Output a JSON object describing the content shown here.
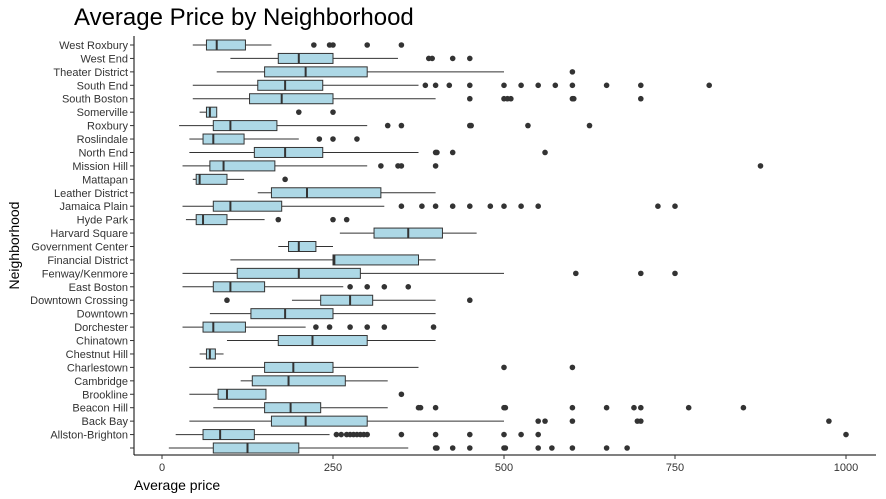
{
  "chart_data": {
    "type": "boxplot",
    "orientation": "horizontal",
    "title": "Average Price by Neighborhood",
    "xlabel": "Average price",
    "ylabel": "Neighborhood",
    "xlim": [
      -80,
      1045
    ],
    "xticks": [
      0,
      250,
      500,
      750,
      1000
    ],
    "box_color": "#ADD8E6",
    "grid": false,
    "categories": [
      {
        "name": "West Roxbury",
        "whisker_low": 45,
        "q1": 65,
        "median": 80,
        "q3": 122,
        "whisker_high": 160,
        "outliers": [
          222,
          245,
          250,
          300,
          350
        ]
      },
      {
        "name": "West End",
        "whisker_low": 100,
        "q1": 170,
        "median": 200,
        "q3": 250,
        "whisker_high": 345,
        "outliers": [
          390,
          395,
          425,
          450
        ]
      },
      {
        "name": "Theater District",
        "whisker_low": 80,
        "q1": 150,
        "median": 210,
        "q3": 300,
        "whisker_high": 500,
        "outliers": [
          600
        ]
      },
      {
        "name": "South End",
        "whisker_low": 45,
        "q1": 140,
        "median": 180,
        "q3": 235,
        "whisker_high": 375,
        "outliers": [
          385,
          400,
          420,
          450,
          500,
          525,
          550,
          575,
          600,
          650,
          700,
          800
        ]
      },
      {
        "name": "South Boston",
        "whisker_low": 45,
        "q1": 128,
        "median": 175,
        "q3": 250,
        "whisker_high": 400,
        "outliers": [
          450,
          500,
          505,
          510,
          600,
          602,
          700
        ]
      },
      {
        "name": "Somerville",
        "whisker_low": 55,
        "q1": 65,
        "median": 70,
        "q3": 80,
        "whisker_high": 80,
        "outliers": [
          200,
          250
        ]
      },
      {
        "name": "Roxbury",
        "whisker_low": 25,
        "q1": 75,
        "median": 100,
        "q3": 168,
        "whisker_high": 300,
        "outliers": [
          330,
          350,
          450,
          452,
          535,
          625
        ]
      },
      {
        "name": "Roslindale",
        "whisker_low": 40,
        "q1": 60,
        "median": 75,
        "q3": 120,
        "whisker_high": 200,
        "outliers": [
          230,
          250,
          285
        ]
      },
      {
        "name": "North End",
        "whisker_low": 40,
        "q1": 135,
        "median": 180,
        "q3": 235,
        "whisker_high": 375,
        "outliers": [
          400,
          402,
          425,
          560
        ]
      },
      {
        "name": "Mission Hill",
        "whisker_low": 30,
        "q1": 70,
        "median": 90,
        "q3": 165,
        "whisker_high": 300,
        "outliers": [
          320,
          345,
          350,
          400,
          875
        ]
      },
      {
        "name": "Mattapan",
        "whisker_low": 45,
        "q1": 50,
        "median": 55,
        "q3": 95,
        "whisker_high": 120,
        "outliers": [
          180
        ]
      },
      {
        "name": "Leather District",
        "whisker_low": 140,
        "q1": 160,
        "median": 212,
        "q3": 320,
        "whisker_high": 400,
        "outliers": []
      },
      {
        "name": "Jamaica Plain",
        "whisker_low": 30,
        "q1": 75,
        "median": 100,
        "q3": 175,
        "whisker_high": 325,
        "outliers": [
          350,
          380,
          400,
          425,
          450,
          480,
          500,
          525,
          550,
          725,
          750
        ]
      },
      {
        "name": "Hyde Park",
        "whisker_low": 35,
        "q1": 50,
        "median": 60,
        "q3": 95,
        "whisker_high": 150,
        "outliers": [
          170,
          250,
          270
        ]
      },
      {
        "name": "Harvard Square",
        "whisker_low": 260,
        "q1": 310,
        "median": 360,
        "q3": 410,
        "whisker_high": 460,
        "outliers": []
      },
      {
        "name": "Government Center",
        "whisker_low": 170,
        "q1": 185,
        "median": 200,
        "q3": 225,
        "whisker_high": 250,
        "outliers": []
      },
      {
        "name": "Financial District",
        "whisker_low": 100,
        "q1": 250,
        "median": 252,
        "q3": 375,
        "whisker_high": 400,
        "outliers": []
      },
      {
        "name": "Fenway/Kenmore",
        "whisker_low": 30,
        "q1": 110,
        "median": 200,
        "q3": 290,
        "whisker_high": 500,
        "outliers": [
          605,
          700,
          750
        ]
      },
      {
        "name": "East Boston",
        "whisker_low": 30,
        "q1": 75,
        "median": 100,
        "q3": 150,
        "whisker_high": 265,
        "outliers": [
          275,
          300,
          325,
          360
        ]
      },
      {
        "name": "Downtown Crossing",
        "whisker_low": 190,
        "q1": 232,
        "median": 275,
        "q3": 308,
        "whisker_high": 400,
        "outliers": [
          95,
          450
        ]
      },
      {
        "name": "Downtown",
        "whisker_low": 70,
        "q1": 130,
        "median": 180,
        "q3": 250,
        "whisker_high": 400,
        "outliers": []
      },
      {
        "name": "Dorchester",
        "whisker_low": 30,
        "q1": 60,
        "median": 75,
        "q3": 122,
        "whisker_high": 210,
        "outliers": [
          225,
          245,
          275,
          300,
          325,
          397
        ]
      },
      {
        "name": "Chinatown",
        "whisker_low": 95,
        "q1": 170,
        "median": 220,
        "q3": 300,
        "whisker_high": 400,
        "outliers": []
      },
      {
        "name": "Chestnut Hill",
        "whisker_low": 55,
        "q1": 65,
        "median": 70,
        "q3": 78,
        "whisker_high": 90,
        "outliers": []
      },
      {
        "name": "Charlestown",
        "whisker_low": 40,
        "q1": 150,
        "median": 192,
        "q3": 250,
        "whisker_high": 375,
        "outliers": [
          500,
          600
        ]
      },
      {
        "name": "Cambridge",
        "whisker_low": 115,
        "q1": 132,
        "median": 185,
        "q3": 268,
        "whisker_high": 330,
        "outliers": []
      },
      {
        "name": "Brookline",
        "whisker_low": 40,
        "q1": 82,
        "median": 95,
        "q3": 152,
        "whisker_high": 152,
        "outliers": [
          350
        ]
      },
      {
        "name": "Beacon Hill",
        "whisker_low": 75,
        "q1": 150,
        "median": 188,
        "q3": 232,
        "whisker_high": 330,
        "outliers": [
          375,
          378,
          400,
          500,
          502,
          600,
          650,
          690,
          700,
          770,
          850
        ]
      },
      {
        "name": "Back Bay",
        "whisker_low": 40,
        "q1": 160,
        "median": 210,
        "q3": 300,
        "whisker_high": 500,
        "outliers": [
          550,
          560,
          600,
          695,
          700,
          975
        ]
      },
      {
        "name": "Allston-Brighton",
        "whisker_low": 20,
        "q1": 60,
        "median": 85,
        "q3": 135,
        "whisker_high": 245,
        "outliers": [
          255,
          262,
          270,
          275,
          280,
          285,
          290,
          295,
          300,
          350,
          400,
          450,
          500,
          525,
          550,
          1000
        ]
      },
      {
        "name": "",
        "whisker_low": 10,
        "q1": 75,
        "median": 125,
        "q3": 200,
        "whisker_high": 360,
        "outliers": [
          400,
          402,
          425,
          450,
          500,
          502,
          550,
          570,
          600,
          650,
          680
        ]
      }
    ]
  }
}
